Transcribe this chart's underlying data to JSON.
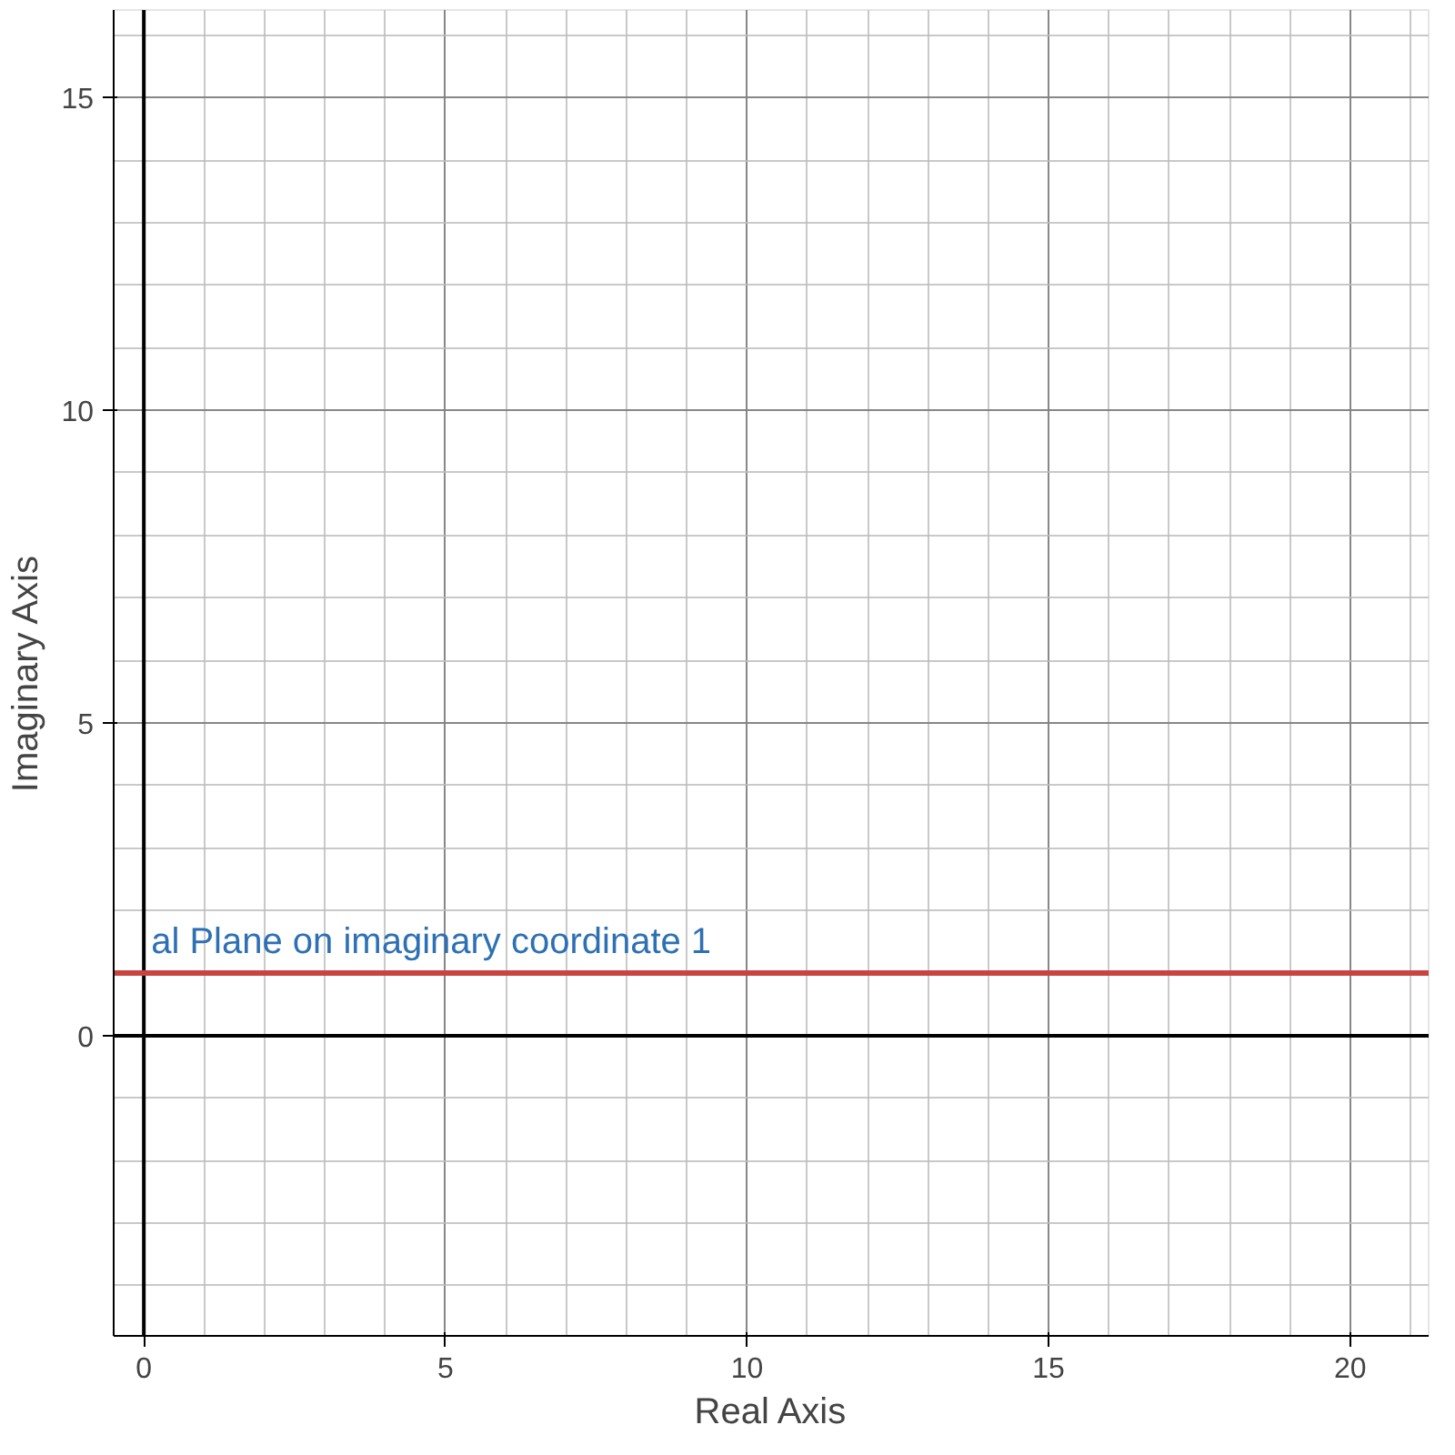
{
  "chart_data": {
    "type": "line",
    "xlabel": "Real Axis",
    "ylabel": "Imaginary Axis",
    "x": [
      -0.5,
      21.3
    ],
    "series": [
      {
        "color": "#c74440",
        "values": [
          1,
          1
        ]
      }
    ],
    "xlim": [
      -0.5,
      21.3
    ],
    "ylim": [
      -4.8,
      16.4
    ],
    "xticks": [
      0,
      5,
      10,
      15,
      20
    ],
    "yticks": [
      0,
      5,
      10,
      15
    ],
    "grid": true,
    "annotations": [
      {
        "text": "al Plane on imaginary coordinate 1",
        "x": 0,
        "y": 1
      }
    ]
  }
}
